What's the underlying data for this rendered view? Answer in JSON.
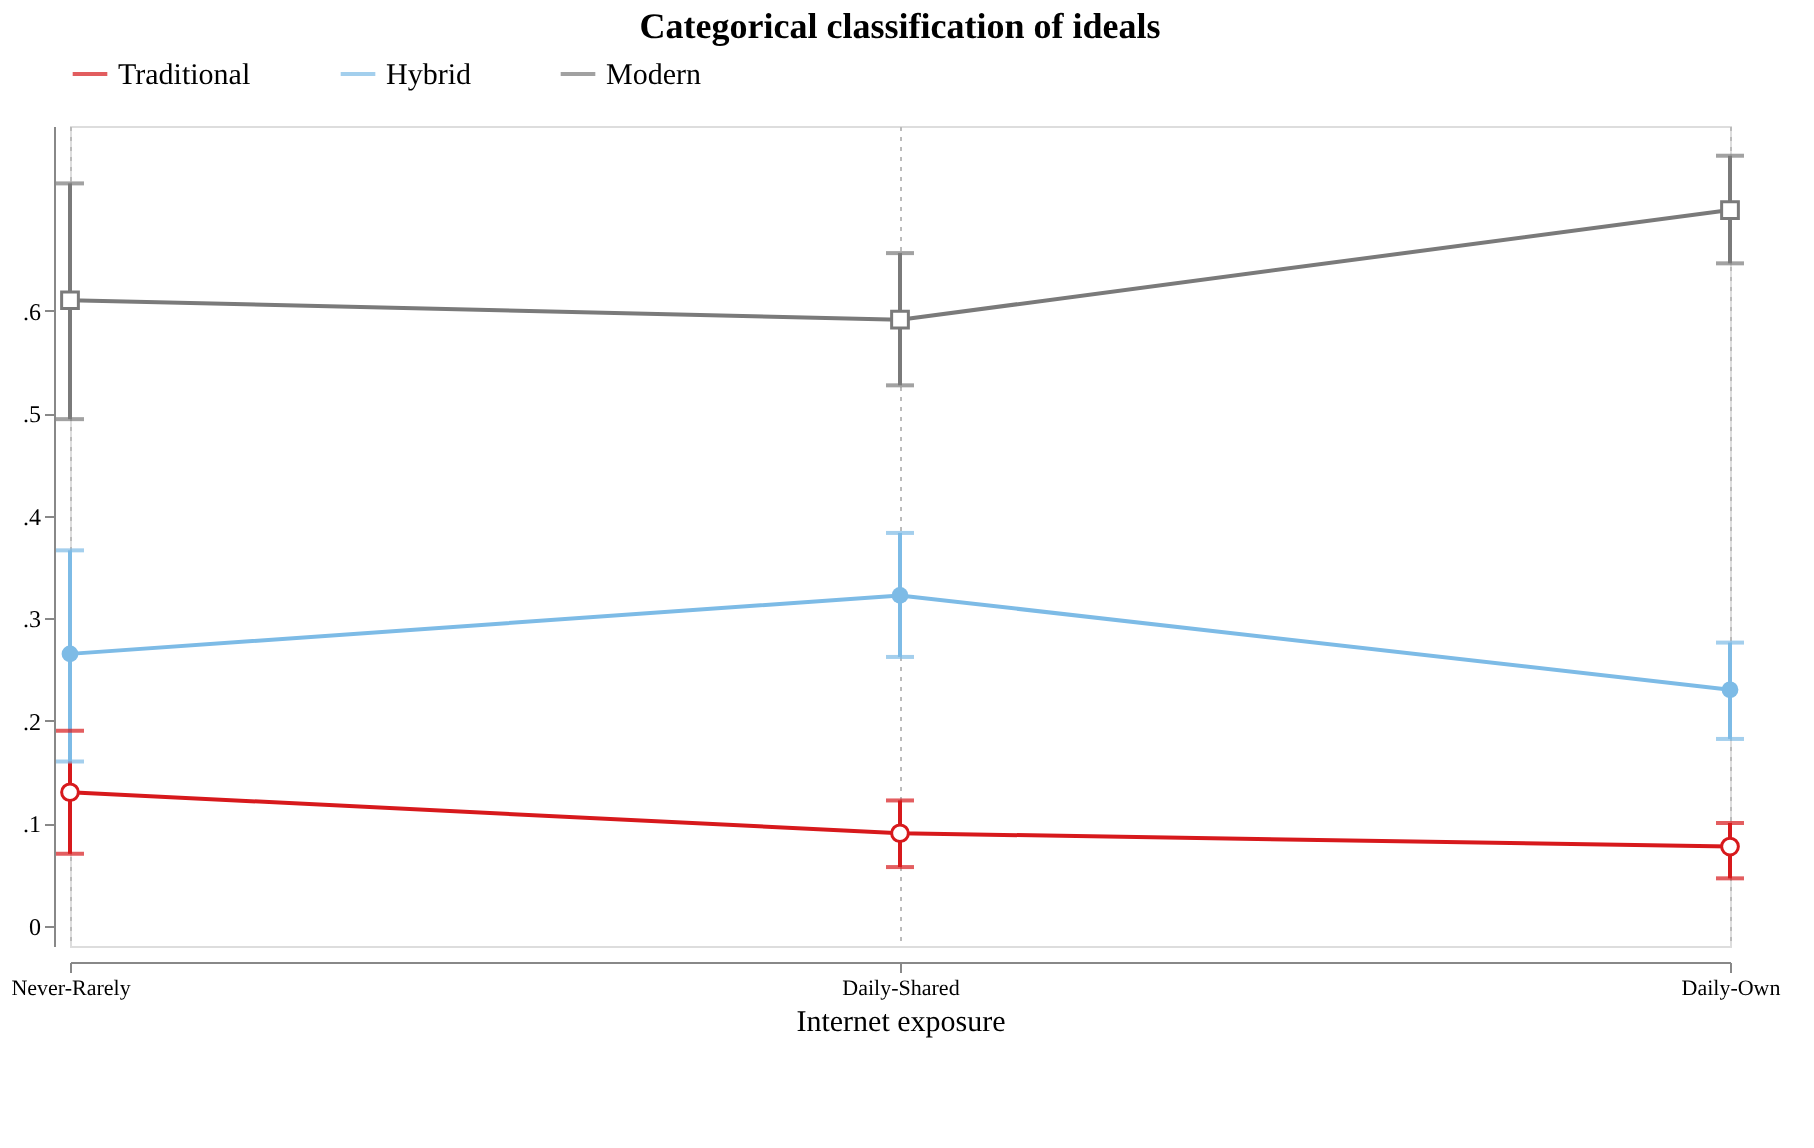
{
  "chart_data": {
    "type": "line",
    "title": "Categorical classification of ideals",
    "xlabel": "Internet exposure",
    "categories": [
      "Never-Rarely",
      "Daily-Shared",
      "Daily-Own"
    ],
    "series": [
      {
        "name": "Traditional",
        "color": "#d7191c",
        "marker": "circle-open",
        "values": [
          0.13,
          0.09,
          0.077
        ],
        "errors": [
          [
            0.07,
            0.19
          ],
          [
            0.057,
            0.122
          ],
          [
            0.046,
            0.1
          ]
        ]
      },
      {
        "name": "Hybrid",
        "color": "#7dbbe6",
        "marker": "circle",
        "values": [
          0.265,
          0.322,
          0.23
        ],
        "errors": [
          [
            0.16,
            0.366
          ],
          [
            0.262,
            0.383
          ],
          [
            0.182,
            0.276
          ]
        ]
      },
      {
        "name": "Modern",
        "color": "#7a7a7a",
        "marker": "square-open",
        "values": [
          0.61,
          0.591,
          0.698
        ],
        "errors": [
          [
            0.494,
            0.724
          ],
          [
            0.527,
            0.656
          ],
          [
            0.646,
            0.751
          ]
        ]
      }
    ],
    "ylim": [
      -0.02,
      0.78
    ],
    "yticks": [
      0,
      {
        "value": 0.1,
        "label": ".1"
      },
      {
        "value": 0.2,
        "label": ".2"
      },
      {
        "value": 0.3,
        "label": ".3"
      },
      {
        "value": 0.4,
        "label": ".4"
      },
      {
        "value": 0.5,
        "label": ".5"
      },
      {
        "value": 0.6,
        "label": ".6"
      }
    ],
    "grid": "x",
    "legend": "top",
    "line_style": "solid"
  }
}
